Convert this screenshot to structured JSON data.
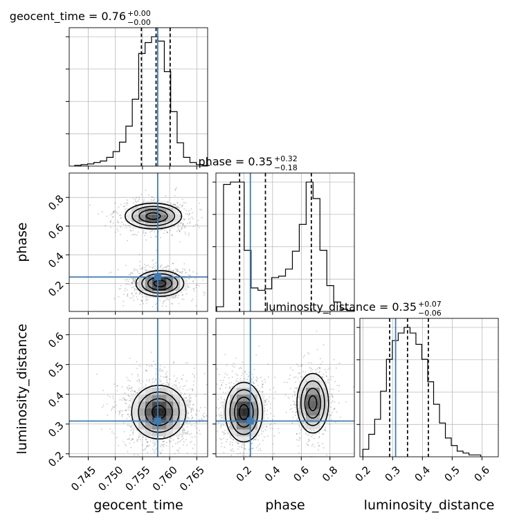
{
  "chart_data": {
    "type": "corner",
    "parameters": [
      "geocent_time",
      "phase",
      "luminosity_distance"
    ],
    "axis_labels": [
      "geocent_time",
      "phase",
      "luminosity_distance"
    ],
    "titles": [
      {
        "name": "geocent_time",
        "text": "geocent_time = 0.76",
        "plus": "+0.00",
        "minus": "−0.00"
      },
      {
        "name": "phase",
        "text": "phase = 0.35",
        "plus": "+0.32",
        "minus": "−0.18"
      },
      {
        "name": "luminosity_distance",
        "text": "luminosity_distance = 0.35",
        "plus": "+0.07",
        "minus": "−0.06"
      }
    ],
    "ranges": [
      [
        0.7415,
        0.767
      ],
      [
        0.005,
        0.97
      ],
      [
        0.19,
        0.655
      ]
    ],
    "ticks": [
      [
        "0.745",
        "0.750",
        "0.755",
        "0.760",
        "0.765"
      ],
      [
        "0.2",
        "0.4",
        "0.6",
        "0.8"
      ],
      [
        "0.2",
        "0.3",
        "0.4",
        "0.5",
        "0.6"
      ]
    ],
    "truths": [
      0.7578,
      0.245,
      0.31
    ],
    "quantiles": [
      [
        0.7548,
        0.7575,
        0.7601
      ],
      [
        0.17,
        0.35,
        0.67
      ],
      [
        0.29,
        0.35,
        0.42
      ]
    ],
    "histograms": [
      {
        "name": "geocent_time",
        "edges_start": 0.7425,
        "bin_width": 0.00118,
        "counts": [
          1,
          2,
          3,
          5,
          7,
          12,
          20,
          33,
          55,
          92,
          155,
          170,
          178,
          172,
          130,
          75,
          32,
          12,
          5,
          2,
          1
        ]
      },
      {
        "name": "phase",
        "edges_start": 0.01,
        "bin_width": 0.048,
        "counts": [
          10,
          270,
          275,
          275,
          130,
          50,
          45,
          48,
          72,
          75,
          90,
          128,
          185,
          275,
          240,
          130,
          55,
          20,
          5,
          2
        ]
      },
      {
        "name": "luminosity_distance",
        "edges_start": 0.2,
        "bin_width": 0.0198,
        "counts": [
          4,
          12,
          20,
          35,
          52,
          62,
          66,
          69,
          66,
          60,
          52,
          40,
          28,
          18,
          10,
          6,
          3,
          2,
          1,
          1
        ]
      }
    ],
    "joint": [
      {
        "x": "geocent_time",
        "y": "phase",
        "modes": [
          {
            "mx": 0.7582,
            "my": 0.2,
            "sx": 0.0022,
            "sy": 0.045,
            "w": 0.55
          },
          {
            "mx": 0.757,
            "my": 0.67,
            "sx": 0.0026,
            "sy": 0.045,
            "w": 0.45
          }
        ]
      },
      {
        "x": "geocent_time",
        "y": "luminosity_distance",
        "modes": [
          {
            "mx": 0.758,
            "my": 0.34,
            "sx": 0.0025,
            "sy": 0.045,
            "w": 1
          }
        ]
      },
      {
        "x": "phase",
        "y": "luminosity_distance",
        "modes": [
          {
            "mx": 0.2,
            "my": 0.34,
            "sx": 0.065,
            "sy": 0.05,
            "w": 0.55
          },
          {
            "mx": 0.68,
            "my": 0.37,
            "sx": 0.055,
            "sy": 0.05,
            "w": 0.45
          }
        ]
      }
    ]
  }
}
